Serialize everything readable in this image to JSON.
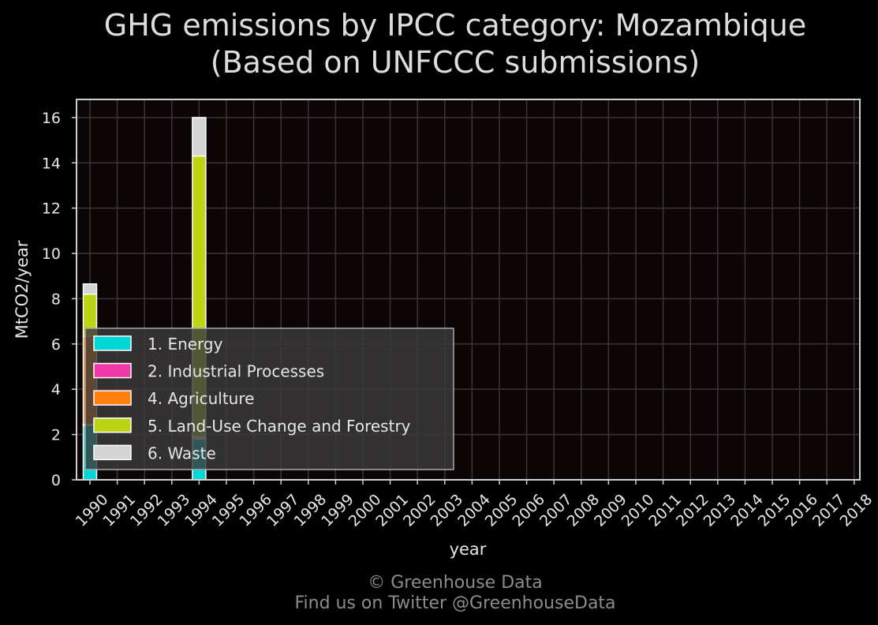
{
  "chart_data": {
    "type": "bar",
    "stacked": true,
    "title_lines": [
      "GHG emissions by IPCC category: Mozambique",
      "(Based on UNFCCC submissions)"
    ],
    "xlabel": "year",
    "ylabel": "MtCO2/year",
    "ylim": [
      0,
      16.8
    ],
    "yticks": [
      0,
      2,
      4,
      6,
      8,
      10,
      12,
      14,
      16
    ],
    "grid": true,
    "legend_position": "lower-left",
    "categories": [
      "1990",
      "1991",
      "1992",
      "1993",
      "1994",
      "1995",
      "1996",
      "1997",
      "1998",
      "1999",
      "2000",
      "2001",
      "2002",
      "2003",
      "2004",
      "2005",
      "2006",
      "2007",
      "2008",
      "2009",
      "2010",
      "2011",
      "2012",
      "2013",
      "2014",
      "2015",
      "2016",
      "2017",
      "2018"
    ],
    "series": [
      {
        "name": "1. Energy",
        "color": "#00d6d6",
        "values": [
          2.4,
          null,
          null,
          null,
          1.8,
          null,
          null,
          null,
          null,
          null,
          null,
          null,
          null,
          null,
          null,
          null,
          null,
          null,
          null,
          null,
          null,
          null,
          null,
          null,
          null,
          null,
          null,
          null,
          null
        ]
      },
      {
        "name": "2. Industrial Processes",
        "color": "#f038a8",
        "values": [
          0.05,
          null,
          null,
          null,
          0.05,
          null,
          null,
          null,
          null,
          null,
          null,
          null,
          null,
          null,
          null,
          null,
          null,
          null,
          null,
          null,
          null,
          null,
          null,
          null,
          null,
          null,
          null,
          null,
          null
        ]
      },
      {
        "name": "4. Agriculture",
        "color": "#ff7f0e",
        "values": [
          3.9,
          null,
          null,
          null,
          0.05,
          null,
          null,
          null,
          null,
          null,
          null,
          null,
          null,
          null,
          null,
          null,
          null,
          null,
          null,
          null,
          null,
          null,
          null,
          null,
          null,
          null,
          null,
          null,
          null
        ]
      },
      {
        "name": "5. Land-Use Change and Forestry",
        "color": "#bcd415",
        "values": [
          1.85,
          null,
          null,
          null,
          12.4,
          null,
          null,
          null,
          null,
          null,
          null,
          null,
          null,
          null,
          null,
          null,
          null,
          null,
          null,
          null,
          null,
          null,
          null,
          null,
          null,
          null,
          null,
          null,
          null
        ]
      },
      {
        "name": "6. Waste",
        "color": "#d4d4d4",
        "values": [
          0.45,
          null,
          null,
          null,
          1.7,
          null,
          null,
          null,
          null,
          null,
          null,
          null,
          null,
          null,
          null,
          null,
          null,
          null,
          null,
          null,
          null,
          null,
          null,
          null,
          null,
          null,
          null,
          null,
          null
        ]
      }
    ],
    "credit_lines": [
      "© Greenhouse Data",
      "Find us on Twitter @GreenhouseData"
    ]
  }
}
